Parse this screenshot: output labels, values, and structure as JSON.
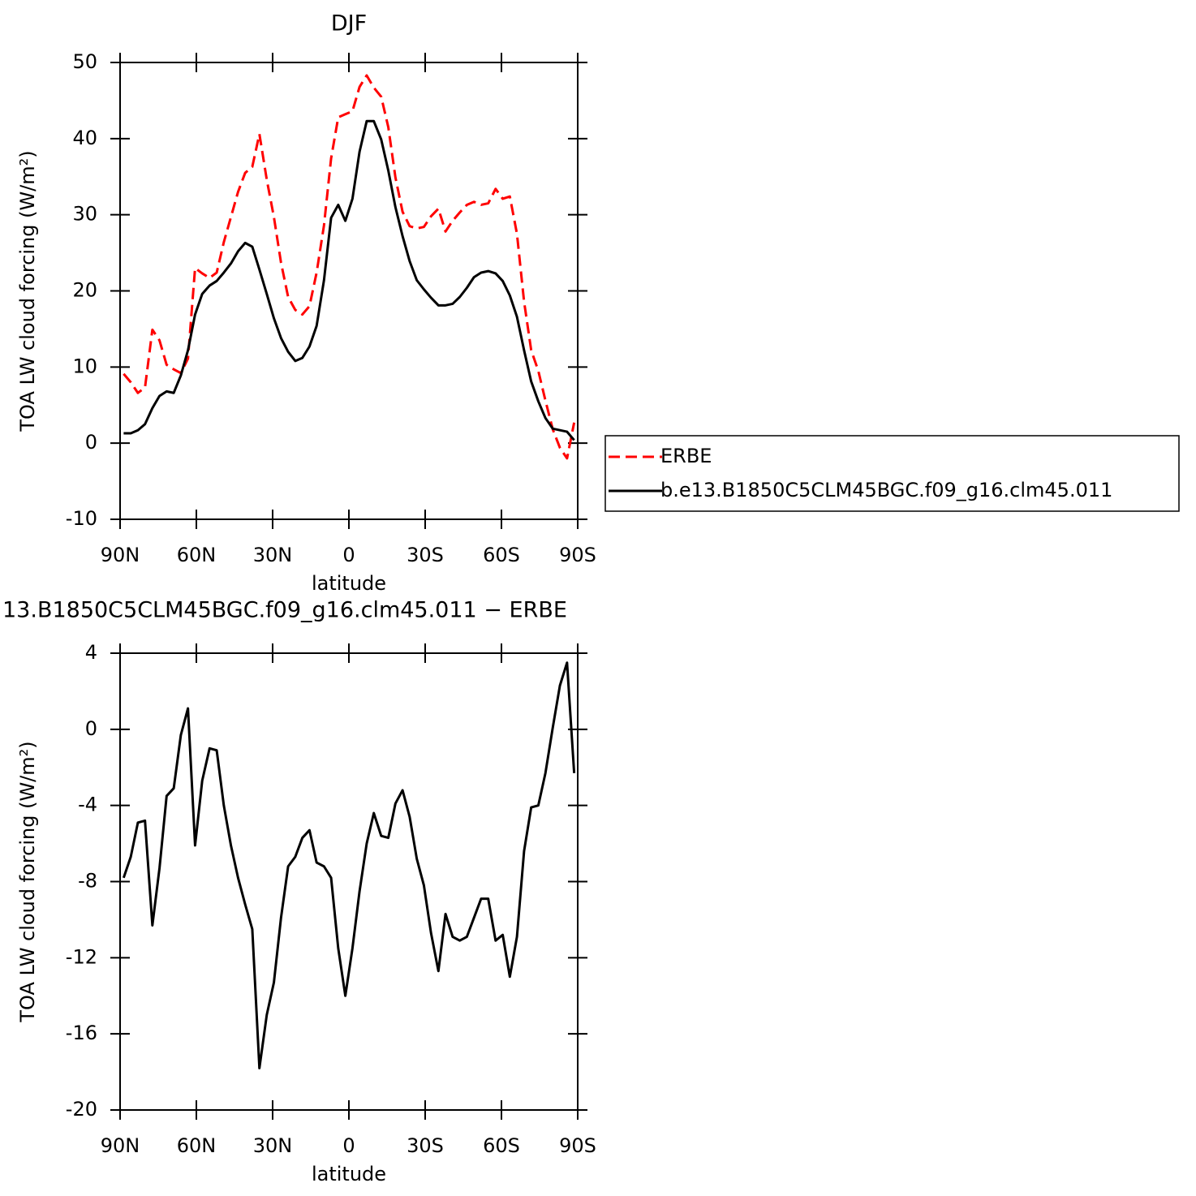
{
  "chart_data": [
    {
      "type": "line",
      "title": "DJF",
      "xlabel": "latitude",
      "ylabel": "TOA LW cloud forcing (W/m²)",
      "x": [
        88.6,
        85.8,
        83.0,
        80.2,
        77.3,
        74.5,
        71.7,
        68.9,
        66.1,
        63.3,
        60.5,
        57.7,
        54.8,
        52.0,
        49.2,
        46.4,
        43.6,
        40.8,
        38.0,
        35.2,
        32.3,
        29.5,
        26.7,
        23.9,
        21.1,
        18.3,
        15.5,
        12.7,
        9.8,
        7.0,
        4.2,
        1.4,
        -1.4,
        -4.2,
        -7.0,
        -9.8,
        -12.7,
        -15.5,
        -18.3,
        -21.1,
        -23.9,
        -26.7,
        -29.5,
        -32.3,
        -35.2,
        -38.0,
        -40.8,
        -43.6,
        -46.4,
        -49.2,
        -52.0,
        -54.8,
        -57.7,
        -60.5,
        -63.3,
        -66.1,
        -68.9,
        -71.7,
        -74.5,
        -77.3,
        -80.2,
        -83.0,
        -85.8,
        -88.6
      ],
      "series": [
        {
          "name": "ERBE",
          "color": "#ff0000",
          "dash": true,
          "values": [
            9.1,
            8.0,
            6.6,
            7.3,
            14.9,
            13.5,
            10.3,
            9.7,
            9.2,
            11.1,
            23.0,
            22.3,
            21.7,
            22.4,
            26.4,
            29.7,
            33.0,
            35.5,
            36.3,
            40.6,
            34.6,
            29.7,
            23.7,
            19.2,
            17.5,
            16.9,
            18.0,
            22.4,
            28.6,
            37.4,
            42.8,
            43.2,
            43.6,
            46.8,
            48.3,
            46.7,
            45.5,
            41.5,
            34.9,
            30.4,
            28.5,
            28.2,
            28.4,
            29.8,
            30.8,
            27.8,
            29.2,
            30.3,
            31.3,
            31.7,
            31.3,
            31.5,
            33.4,
            32.1,
            32.4,
            27.5,
            18.6,
            12.2,
            9.5,
            5.6,
            1.8,
            -0.6,
            -2.0,
            2.7
          ]
        },
        {
          "name": "b.e13.B1850C5CLM45BGC.f09_g16.clm45.011",
          "color": "#000000",
          "dash": false,
          "values": [
            1.3,
            1.3,
            1.7,
            2.5,
            4.6,
            6.2,
            6.8,
            6.6,
            8.9,
            12.2,
            16.9,
            19.6,
            20.7,
            21.3,
            22.4,
            23.6,
            25.2,
            26.3,
            25.8,
            22.8,
            19.6,
            16.4,
            13.8,
            12.0,
            10.8,
            11.2,
            12.7,
            15.4,
            21.4,
            29.6,
            31.3,
            29.2,
            32.1,
            38.3,
            42.3,
            42.3,
            39.9,
            35.8,
            31.0,
            27.2,
            23.9,
            21.4,
            20.2,
            19.1,
            18.1,
            18.1,
            18.3,
            19.2,
            20.4,
            21.8,
            22.4,
            22.6,
            22.3,
            21.3,
            19.4,
            16.6,
            12.2,
            8.1,
            5.5,
            3.3,
            1.9,
            1.7,
            1.5,
            0.4
          ]
        }
      ],
      "xlim": [
        90,
        -90
      ],
      "xticks": [
        {
          "value": 90,
          "label": "90N"
        },
        {
          "value": 60,
          "label": "60N"
        },
        {
          "value": 30,
          "label": "30N"
        },
        0,
        {
          "value": -30,
          "label": "30S"
        },
        {
          "value": -60,
          "label": "60S"
        },
        {
          "value": -90,
          "label": "90S"
        }
      ],
      "ylim": [
        -10,
        50
      ],
      "yticks": [
        -10,
        0,
        10,
        20,
        30,
        40,
        50
      ],
      "legend": "right"
    },
    {
      "type": "line",
      "title": "13.B1850C5CLM45BGC.f09_g16.clm45.011 − ERBE",
      "xlabel": "latitude",
      "ylabel": "TOA LW cloud forcing (W/m²)",
      "x": [
        88.6,
        85.8,
        83.0,
        80.2,
        77.3,
        74.5,
        71.7,
        68.9,
        66.1,
        63.3,
        60.5,
        57.7,
        54.8,
        52.0,
        49.2,
        46.4,
        43.6,
        40.8,
        38.0,
        35.2,
        32.3,
        29.5,
        26.7,
        23.9,
        21.1,
        18.3,
        15.5,
        12.7,
        9.8,
        7.0,
        4.2,
        1.4,
        -1.4,
        -4.2,
        -7.0,
        -9.8,
        -12.7,
        -15.5,
        -18.3,
        -21.1,
        -23.9,
        -26.7,
        -29.5,
        -32.3,
        -35.2,
        -38.0,
        -40.8,
        -43.6,
        -46.4,
        -49.2,
        -52.0,
        -54.8,
        -57.7,
        -60.5,
        -63.3,
        -66.1,
        -68.9,
        -71.7,
        -74.5,
        -77.3,
        -80.2,
        -83.0,
        -85.8,
        -88.6
      ],
      "series": [
        {
          "color": "#000000",
          "dash": false,
          "values": [
            -7.8,
            -6.7,
            -4.9,
            -4.8,
            -10.3,
            -7.3,
            -3.5,
            -3.1,
            -0.3,
            1.1,
            -6.1,
            -2.7,
            -1.0,
            -1.1,
            -4.0,
            -6.1,
            -7.8,
            -9.2,
            -10.5,
            -17.8,
            -15.0,
            -13.3,
            -9.9,
            -7.2,
            -6.7,
            -5.7,
            -5.3,
            -7.0,
            -7.2,
            -7.8,
            -11.5,
            -14.0,
            -11.5,
            -8.5,
            -6.0,
            -4.4,
            -5.6,
            -5.7,
            -3.9,
            -3.2,
            -4.6,
            -6.8,
            -8.2,
            -10.7,
            -12.7,
            -9.7,
            -10.9,
            -11.1,
            -10.9,
            -9.9,
            -8.9,
            -8.9,
            -11.1,
            -10.8,
            -13.0,
            -10.9,
            -6.4,
            -4.1,
            -4.0,
            -2.3,
            0.1,
            2.3,
            3.5,
            -2.3
          ]
        }
      ],
      "xlim": [
        90,
        -90
      ],
      "xticks": [
        {
          "value": 90,
          "label": "90N"
        },
        {
          "value": 60,
          "label": "60N"
        },
        {
          "value": 30,
          "label": "30N"
        },
        0,
        {
          "value": -30,
          "label": "30S"
        },
        {
          "value": -60,
          "label": "60S"
        },
        {
          "value": -90,
          "label": "90S"
        }
      ],
      "ylim": [
        -20,
        4
      ],
      "yticks": [
        -20,
        -16,
        -12,
        -8,
        -4,
        0,
        4
      ]
    }
  ]
}
